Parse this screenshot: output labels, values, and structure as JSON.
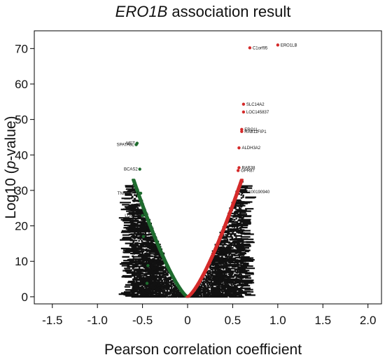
{
  "chart_data": {
    "type": "scatter",
    "title": {
      "gene": "ERO1B",
      "rest": " association result"
    },
    "xlabel": "Pearson correlation coefficient",
    "ylabel": {
      "pre": "Log10 (",
      "p": "p",
      "post": "-value)"
    },
    "xlim": [
      -1.7,
      2.15
    ],
    "ylim": [
      -2,
      75
    ],
    "xticks": [
      -1.5,
      -1.0,
      -0.5,
      0,
      0.5,
      1.0,
      1.5,
      2.0
    ],
    "xtick_labels": [
      "-1.5",
      "-1.0",
      "-0.5",
      "0",
      "0.5",
      "1.0",
      "1.5",
      "2.0"
    ],
    "yticks": [
      0,
      10,
      20,
      30,
      40,
      50,
      60,
      70
    ],
    "ytick_labels": [
      "0",
      "10",
      "20",
      "30",
      "40",
      "50",
      "60",
      "70"
    ],
    "grid": false,
    "colors": {
      "negative": "#1e6b2e",
      "positive": "#d42a2a",
      "neutral": "#111111"
    },
    "bulk_cloud": {
      "description_values": "dense cloud of weakly correlated genes, |r| roughly 0 to 0.6, Log10 p 0 to 35",
      "r_range": [
        -0.6,
        0.62
      ],
      "logp_max": 35
    },
    "highlighted_points": [
      {
        "label": "ERO1LB",
        "x": 1.0,
        "y": 71.0,
        "group": "positive"
      },
      {
        "label": "C1orf95",
        "x": 0.69,
        "y": 70.2,
        "group": "positive"
      },
      {
        "label": "SLC14A2",
        "x": 0.62,
        "y": 54.3,
        "group": "positive"
      },
      {
        "label": "LOC145837",
        "x": 0.62,
        "y": 52.1,
        "group": "positive"
      },
      {
        "label": "ERO1L",
        "x": 0.6,
        "y": 47.2,
        "group": "positive"
      },
      {
        "label": "RAB11FIP1",
        "x": 0.6,
        "y": 46.6,
        "group": "positive"
      },
      {
        "label": "ALDH3A2",
        "x": 0.57,
        "y": 42.0,
        "group": "positive"
      },
      {
        "label": "RAB38",
        "x": 0.57,
        "y": 36.4,
        "group": "positive"
      },
      {
        "label": "GPR87",
        "x": 0.56,
        "y": 35.6,
        "group": "positive"
      },
      {
        "label": "LOC100190940",
        "x": 0.55,
        "y": 29.6,
        "group": "positive"
      },
      {
        "label": "SPATA6L",
        "x": -0.57,
        "y": 42.9,
        "group": "negative"
      },
      {
        "label": "MET",
        "x": -0.56,
        "y": 43.3,
        "group": "negative"
      },
      {
        "label": "BCAS2",
        "x": -0.53,
        "y": 36.0,
        "group": "negative"
      },
      {
        "label": "TNFRSF21",
        "x": -0.52,
        "y": 29.2,
        "group": "negative"
      },
      {
        "label": "LOC100",
        "x": -0.5,
        "y": 22.9,
        "group": "negative"
      },
      {
        "label": "LOC",
        "x": -0.49,
        "y": 17.0,
        "group": "negative"
      },
      {
        "label": "LOCAT",
        "x": -0.44,
        "y": 8.8,
        "group": "negative"
      },
      {
        "label": "LOCAD",
        "x": -0.45,
        "y": 3.8,
        "group": "negative"
      }
    ]
  }
}
